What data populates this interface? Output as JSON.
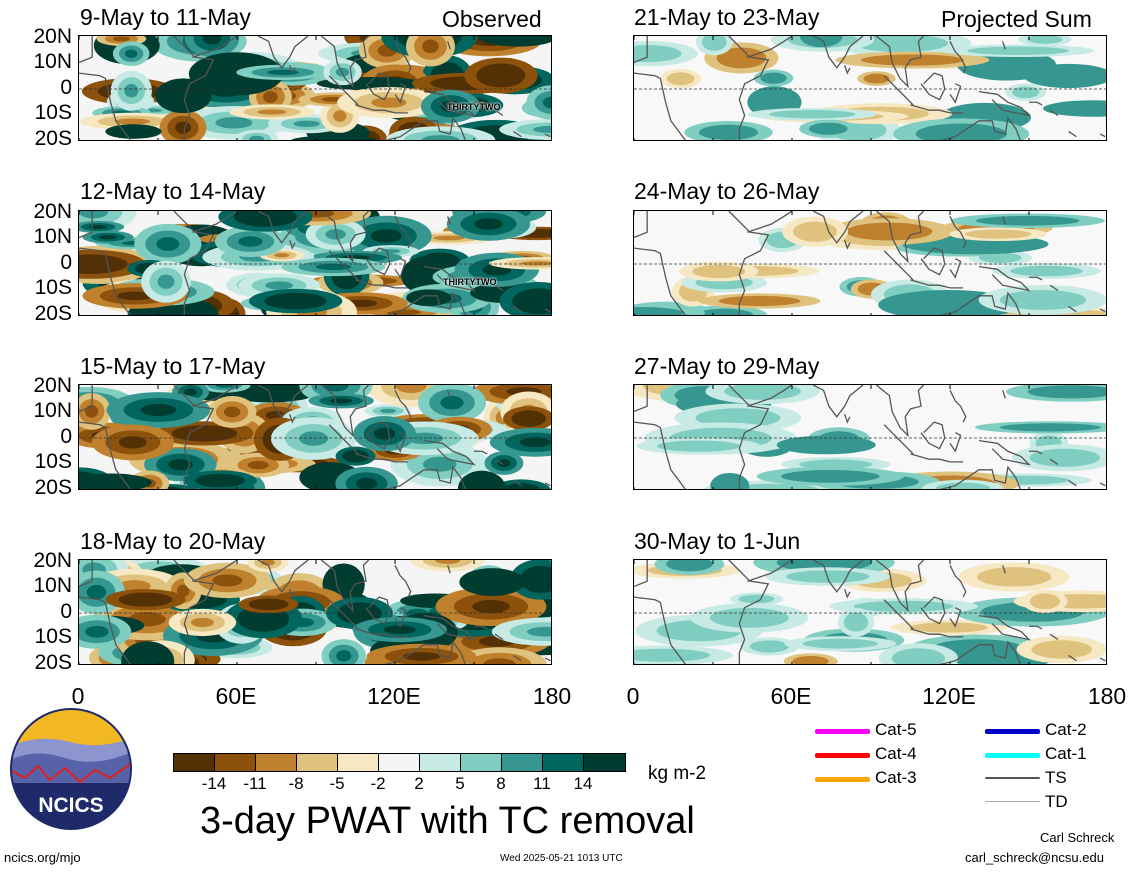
{
  "panels": [
    {
      "title": "9-May to 11-May",
      "tag": "Observed",
      "tc_label": "THIRTYTWO",
      "style": "obs"
    },
    {
      "title": "12-May to 14-May",
      "tag": "",
      "tc_label": "THIRTYTWO",
      "style": "obs"
    },
    {
      "title": "15-May to 17-May",
      "tag": "",
      "tc_label": "",
      "style": "obs"
    },
    {
      "title": "18-May to 20-May",
      "tag": "",
      "tc_label": "",
      "style": "obs"
    },
    {
      "title": "21-May to 23-May",
      "tag": "Projected Sum",
      "tc_label": "",
      "style": "proj"
    },
    {
      "title": "24-May to 26-May",
      "tag": "",
      "tc_label": "",
      "style": "proj"
    },
    {
      "title": "27-May to 29-May",
      "tag": "",
      "tc_label": "",
      "style": "proj"
    },
    {
      "title": "30-May to 1-Jun",
      "tag": "",
      "tc_label": "",
      "style": "proj"
    }
  ],
  "lat_labels": [
    "20N",
    "10N",
    "0",
    "10S",
    "20S"
  ],
  "lon_labels": [
    "0",
    "60E",
    "120E",
    "180"
  ],
  "colorbar": {
    "colors": [
      "#543005",
      "#8c510a",
      "#bf812d",
      "#dfc27d",
      "#f6e8c3",
      "#f5f5f5",
      "#c7eae5",
      "#80cdc1",
      "#35978f",
      "#01665e",
      "#003c30"
    ],
    "ticks": [
      "-14",
      "-11",
      "-8",
      "-5",
      "-2",
      "2",
      "5",
      "8",
      "11",
      "14"
    ],
    "units": "kg m-2"
  },
  "title": "3-day PWAT with TC removal",
  "logo_text": "NCICS",
  "footer": {
    "url": "ncics.org/mjo",
    "timestamp": "Wed 2025-05-21 1013 UTC",
    "author": "Carl Schreck",
    "email": "carl_schreck@ncsu.edu"
  },
  "legend": [
    {
      "label": "Cat-5",
      "color": "#ff00ff"
    },
    {
      "label": "Cat-4",
      "color": "#ff0000"
    },
    {
      "label": "Cat-3",
      "color": "#ffa500"
    },
    {
      "label": "Cat-2",
      "color": "#0000cc"
    },
    {
      "label": "Cat-1",
      "color": "#00ffff"
    },
    {
      "label": "TS",
      "color": "#555555"
    },
    {
      "label": "TD",
      "color": "#aaaaaa"
    }
  ]
}
